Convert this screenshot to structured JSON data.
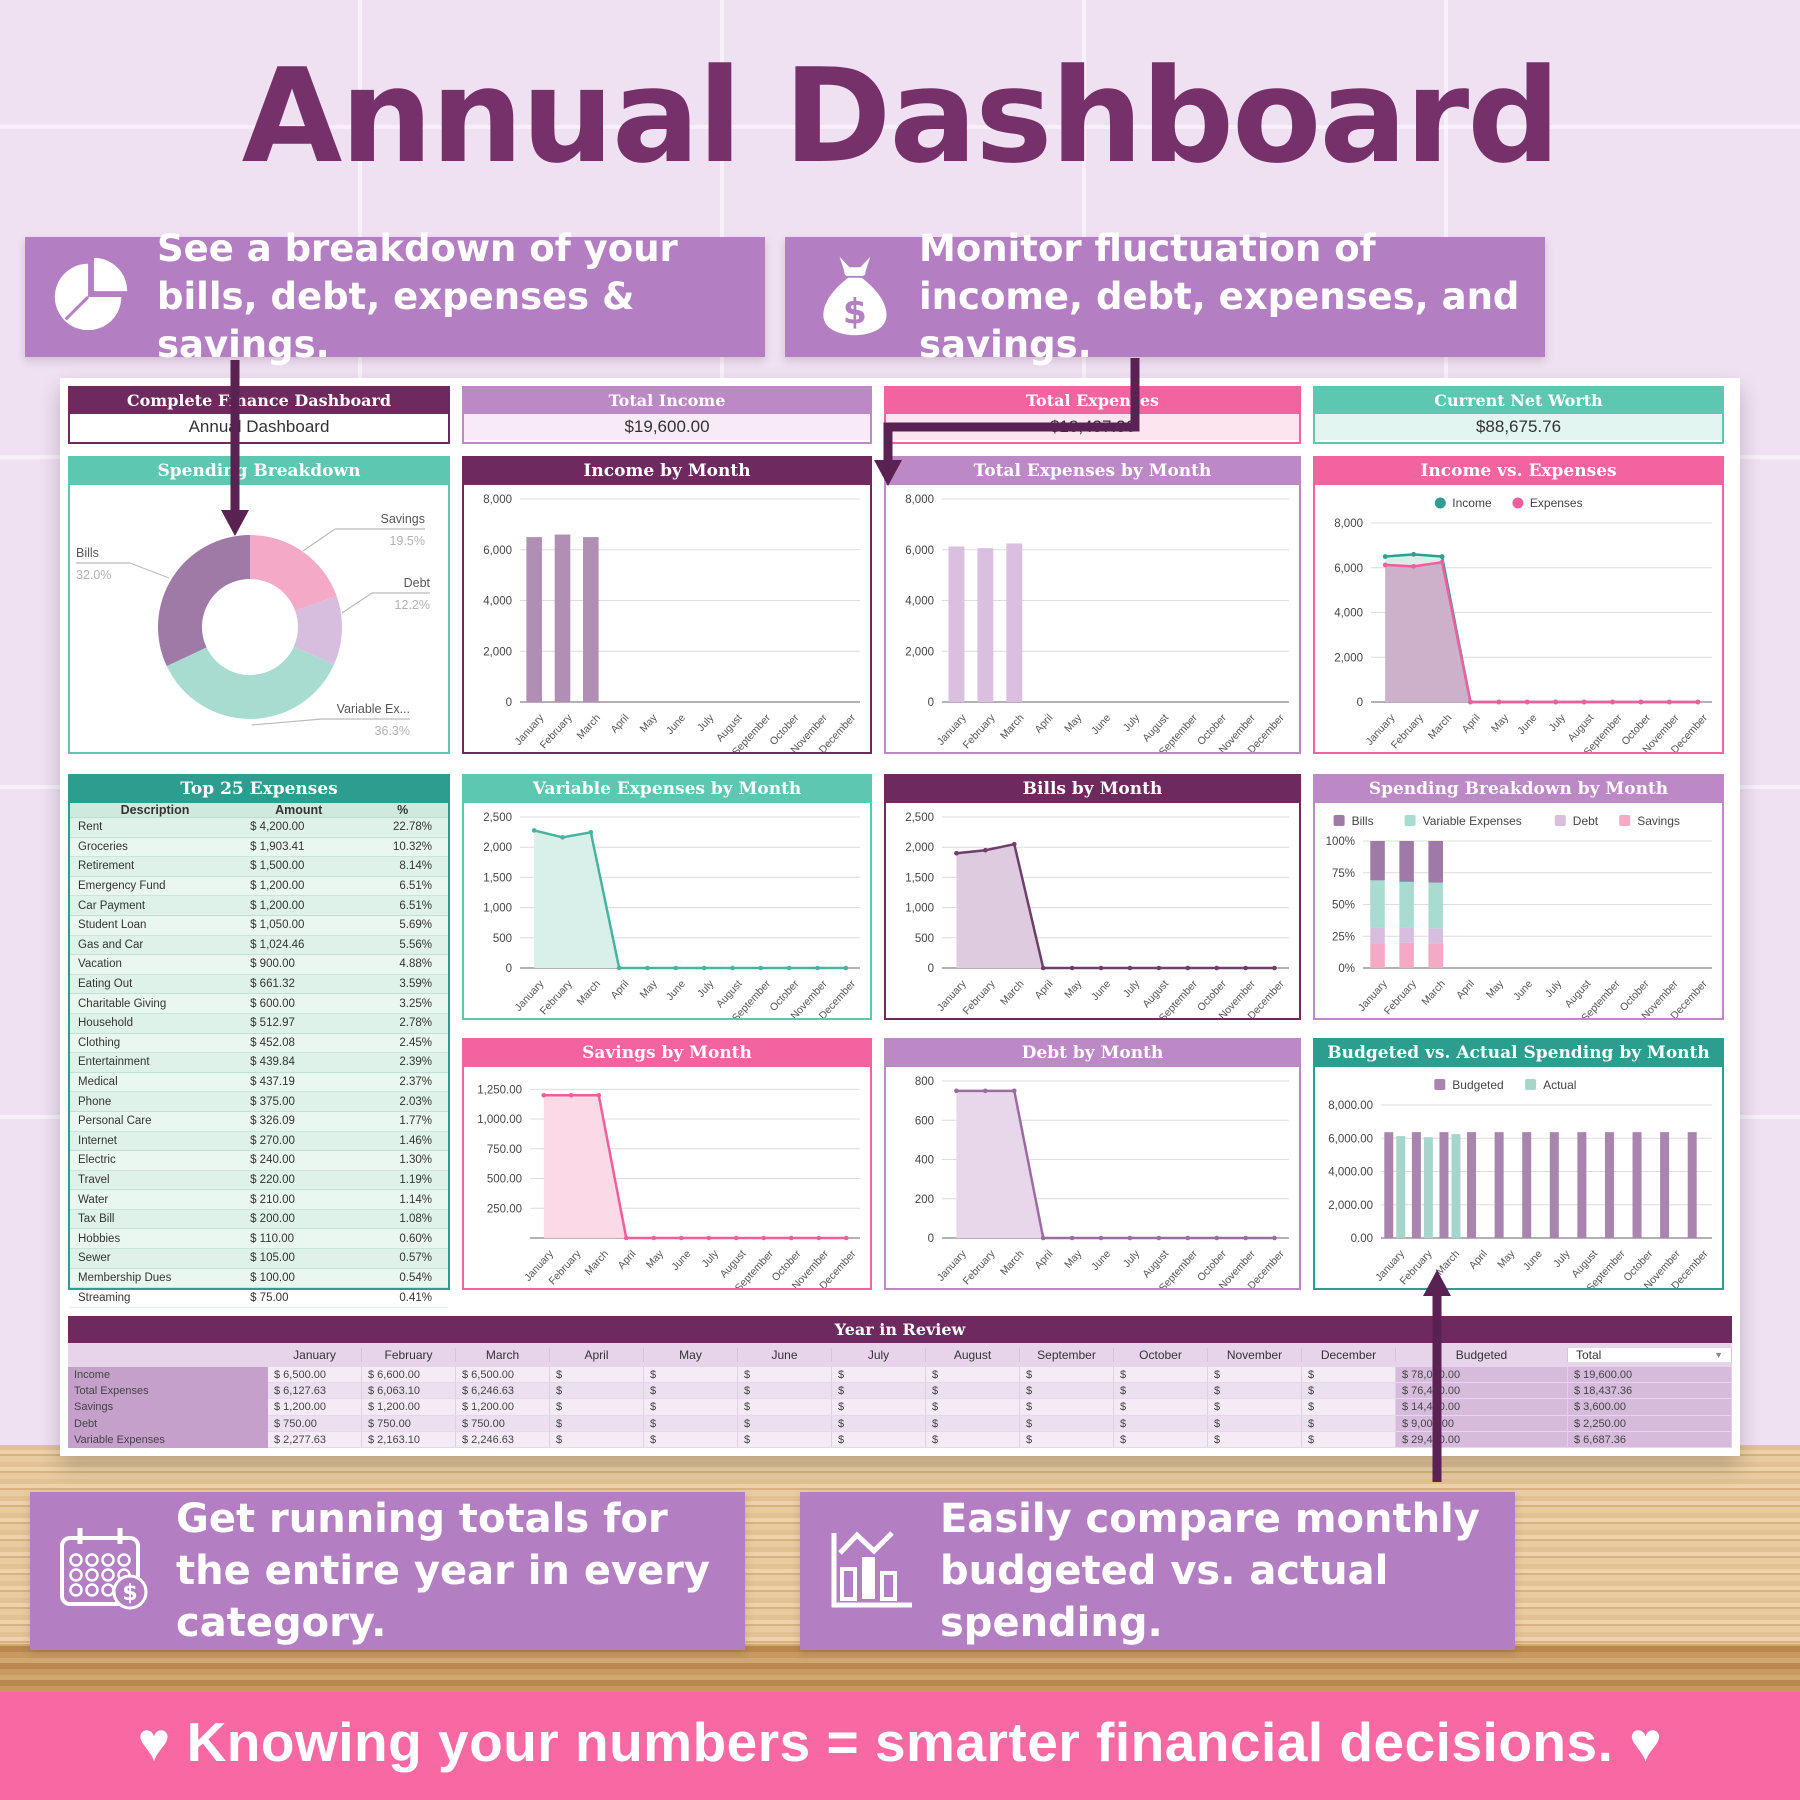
{
  "page": {
    "title": "Annual Dashboard",
    "banner": "♥ Knowing your numbers = smarter financial decisions. ♥"
  },
  "callouts": {
    "top_left": {
      "icon": "pie-chart-icon",
      "text": "See a breakdown of your bills, debt, expenses & savings."
    },
    "top_right": {
      "icon": "money-bag-icon",
      "text": "Monitor fluctuation of income, debt, expenses, and savings."
    },
    "bottom_left": {
      "icon": "calendar-money-icon",
      "text": "Get running totals for the entire year in every category."
    },
    "bottom_right": {
      "icon": "bar-chart-icon",
      "text": "Easily compare monthly budgeted vs. actual spending."
    }
  },
  "cards": [
    {
      "title": "Complete Finance Dashboard",
      "value": "Annual Dashboard",
      "header_color": "#6e2a5e",
      "body_color": "#ffffff"
    },
    {
      "title": "Total Income",
      "value": "$19,600.00",
      "header_color": "#bd88c6",
      "body_color": "#f8eaf7"
    },
    {
      "title": "Total Expenses",
      "value": "$18,437.36",
      "header_color": "#f2639f",
      "body_color": "#fde5ef"
    },
    {
      "title": "Current Net Worth",
      "value": "$88,675.76",
      "header_color": "#5ec7b1",
      "body_color": "#e3f5f0"
    }
  ],
  "months": [
    "January",
    "February",
    "March",
    "April",
    "May",
    "June",
    "July",
    "August",
    "September",
    "October",
    "November",
    "December"
  ],
  "chart_data": [
    {
      "type": "pie",
      "variant": "donut",
      "title": "Spending Breakdown",
      "header_color": "#5ec7b1",
      "slices": [
        {
          "label": "Savings",
          "pct": 19.5,
          "color": "#f4a9c6"
        },
        {
          "label": "Debt",
          "pct": 12.2,
          "color": "#d8bede"
        },
        {
          "label": "Variable Ex...",
          "pct": 36.3,
          "color": "#a9dcd0"
        },
        {
          "label": "Bills",
          "pct": 32.0,
          "color": "#a07aa6"
        }
      ]
    },
    {
      "type": "bar",
      "title": "Income by Month",
      "header_color": "#6e2a5e",
      "bar_color": "#b18fb5",
      "ymax": 8000,
      "yticks": [
        0,
        2000,
        4000,
        6000,
        8000
      ],
      "yfmt": "int",
      "values": [
        6500,
        6600,
        6500,
        0,
        0,
        0,
        0,
        0,
        0,
        0,
        0,
        0
      ]
    },
    {
      "type": "bar",
      "title": "Total Expenses by Month",
      "header_color": "#bd88c6",
      "bar_color": "#dbbfe1",
      "ymax": 8000,
      "yticks": [
        0,
        2000,
        4000,
        6000,
        8000
      ],
      "yfmt": "int",
      "values": [
        6127.63,
        6063.1,
        6246.63,
        0,
        0,
        0,
        0,
        0,
        0,
        0,
        0,
        0
      ]
    },
    {
      "type": "line",
      "variant": "area2",
      "title": "Income vs. Expenses",
      "header_color": "#f2639f",
      "ymax": 8000,
      "yticks": [
        0,
        2000,
        4000,
        6000,
        8000
      ],
      "yfmt": "int",
      "legend": true,
      "legend_marker": "circle",
      "series": [
        {
          "name": "Income",
          "color": "#2f9e8f",
          "fill": "#d8eee8",
          "values": [
            6500,
            6600,
            6500,
            0,
            0,
            0,
            0,
            0,
            0,
            0,
            0,
            0
          ]
        },
        {
          "name": "Expenses",
          "color": "#ef5f9c",
          "fill": "#cdb1cb",
          "values": [
            6127.63,
            6063.1,
            6246.63,
            0,
            0,
            0,
            0,
            0,
            0,
            0,
            0,
            0
          ]
        }
      ]
    },
    {
      "type": "area",
      "title": "Variable Expenses by Month",
      "header_color": "#5ec7b1",
      "line_color": "#48b3a0",
      "fill_color": "#d8f0e9",
      "ymax": 2500,
      "yticks": [
        0,
        500,
        1000,
        1500,
        2000,
        2500
      ],
      "yfmt": "int",
      "values": [
        2277.63,
        2163.1,
        2246.63,
        0,
        0,
        0,
        0,
        0,
        0,
        0,
        0,
        0
      ]
    },
    {
      "type": "area",
      "title": "Bills by Month",
      "header_color": "#6e2a5e",
      "line_color": "#6f3f6b",
      "fill_color": "#decbdf",
      "ymax": 2500,
      "yticks": [
        0,
        500,
        1000,
        1500,
        2000,
        2500
      ],
      "yfmt": "int",
      "values": [
        1900,
        1950,
        2050,
        0,
        0,
        0,
        0,
        0,
        0,
        0,
        0,
        0
      ]
    },
    {
      "type": "bar",
      "variant": "stacked100",
      "title": "Spending Breakdown by Month",
      "header_color": "#bd88c6",
      "legend": true,
      "ymax": 100,
      "yticks": [
        0,
        25,
        50,
        75,
        100
      ],
      "yfmt": "pct",
      "series": [
        {
          "name": "Bills",
          "color": "#a07aa6",
          "values": [
            1900,
            1950,
            2050,
            0,
            0,
            0,
            0,
            0,
            0,
            0,
            0,
            0
          ]
        },
        {
          "name": "Variable Expenses",
          "color": "#a9dcd0",
          "values": [
            2277.63,
            2163.1,
            2246.63,
            0,
            0,
            0,
            0,
            0,
            0,
            0,
            0,
            0
          ]
        },
        {
          "name": "Debt",
          "color": "#d8bede",
          "values": [
            750,
            750,
            750,
            0,
            0,
            0,
            0,
            0,
            0,
            0,
            0,
            0
          ]
        },
        {
          "name": "Savings",
          "color": "#f4a9c6",
          "values": [
            1200,
            1200,
            1200,
            0,
            0,
            0,
            0,
            0,
            0,
            0,
            0,
            0
          ]
        }
      ]
    },
    {
      "type": "area",
      "title": "Savings by Month",
      "header_color": "#f2639f",
      "line_color": "#ef5f9c",
      "fill_color": "#fbd9e7",
      "ymax": 1320,
      "yticks": [
        250,
        500,
        750,
        1000,
        1250
      ],
      "yfmt": "dec",
      "values": [
        1200,
        1200,
        1200,
        0,
        0,
        0,
        0,
        0,
        0,
        0,
        0,
        0
      ]
    },
    {
      "type": "area",
      "title": "Debt by Month",
      "header_color": "#bd88c6",
      "line_color": "#9d6ba4",
      "fill_color": "#e8d6eb",
      "ymax": 800,
      "yticks": [
        0,
        200,
        400,
        600,
        800
      ],
      "yfmt": "int",
      "values": [
        750,
        750,
        750,
        0,
        0,
        0,
        0,
        0,
        0,
        0,
        0,
        0
      ]
    },
    {
      "type": "bar",
      "variant": "grouped",
      "title": "Budgeted vs. Actual Spending by Month",
      "header_color": "#2d9d8f",
      "legend": true,
      "ymax": 8000,
      "yticks": [
        0,
        2000,
        4000,
        6000,
        8000
      ],
      "yfmt": "dec",
      "series": [
        {
          "name": "Budgeted",
          "color": "#a884ae",
          "values": [
            6366.67,
            6366.67,
            6366.67,
            6366.67,
            6366.67,
            6366.67,
            6366.67,
            6366.67,
            6366.67,
            6366.67,
            6366.67,
            6366.67
          ]
        },
        {
          "name": "Actual",
          "color": "#a7d5cb",
          "values": [
            6127.63,
            6063.1,
            6246.63,
            0,
            0,
            0,
            0,
            0,
            0,
            0,
            0,
            0
          ]
        }
      ]
    }
  ],
  "top25": {
    "title": "Top 25 Expenses",
    "columns": [
      "Description",
      "Amount",
      "%"
    ],
    "rows": [
      [
        "Rent",
        "$ 4,200.00",
        "22.78%"
      ],
      [
        "Groceries",
        "$ 1,903.41",
        "10.32%"
      ],
      [
        "Retirement",
        "$ 1,500.00",
        "8.14%"
      ],
      [
        "Emergency Fund",
        "$ 1,200.00",
        "6.51%"
      ],
      [
        "Car Payment",
        "$ 1,200.00",
        "6.51%"
      ],
      [
        "Student Loan",
        "$ 1,050.00",
        "5.69%"
      ],
      [
        "Gas and Car",
        "$ 1,024.46",
        "5.56%"
      ],
      [
        "Vacation",
        "$ 900.00",
        "4.88%"
      ],
      [
        "Eating Out",
        "$ 661.32",
        "3.59%"
      ],
      [
        "Charitable Giving",
        "$ 600.00",
        "3.25%"
      ],
      [
        "Household",
        "$ 512.97",
        "2.78%"
      ],
      [
        "Clothing",
        "$ 452.08",
        "2.45%"
      ],
      [
        "Entertainment",
        "$ 439.84",
        "2.39%"
      ],
      [
        "Medical",
        "$ 437.19",
        "2.37%"
      ],
      [
        "Phone",
        "$ 375.00",
        "2.03%"
      ],
      [
        "Personal Care",
        "$ 326.09",
        "1.77%"
      ],
      [
        "Internet",
        "$ 270.00",
        "1.46%"
      ],
      [
        "Electric",
        "$ 240.00",
        "1.30%"
      ],
      [
        "Travel",
        "$ 220.00",
        "1.19%"
      ],
      [
        "Water",
        "$ 210.00",
        "1.14%"
      ],
      [
        "Tax Bill",
        "$ 200.00",
        "1.08%"
      ],
      [
        "Hobbies",
        "$ 110.00",
        "0.60%"
      ],
      [
        "Sewer",
        "$ 105.00",
        "0.57%"
      ],
      [
        "Membership Dues",
        "$ 100.00",
        "0.54%"
      ],
      [
        "Streaming",
        "$ 75.00",
        "0.41%"
      ]
    ]
  },
  "year_in_review": {
    "title": "Year in Review",
    "columns": [
      "",
      "January",
      "February",
      "March",
      "April",
      "May",
      "June",
      "July",
      "August",
      "September",
      "October",
      "November",
      "December",
      "Budgeted",
      "Total"
    ],
    "rows": [
      {
        "label": "Income",
        "values": [
          "$ 6,500.00",
          "$ 6,600.00",
          "$ 6,500.00",
          "$",
          "$",
          "$",
          "$",
          "$",
          "$",
          "$",
          "$",
          "$",
          "$ 78,000.00",
          "$ 19,600.00"
        ]
      },
      {
        "label": "Total Expenses",
        "values": [
          "$ 6,127.63",
          "$ 6,063.10",
          "$ 6,246.63",
          "$",
          "$",
          "$",
          "$",
          "$",
          "$",
          "$",
          "$",
          "$",
          "$ 76,400.00",
          "$ 18,437.36"
        ]
      },
      {
        "label": "Savings",
        "values": [
          "$ 1,200.00",
          "$ 1,200.00",
          "$ 1,200.00",
          "$",
          "$",
          "$",
          "$",
          "$",
          "$",
          "$",
          "$",
          "$",
          "$ 14,400.00",
          "$ 3,600.00"
        ]
      },
      {
        "label": "Debt",
        "values": [
          "$ 750.00",
          "$ 750.00",
          "$ 750.00",
          "$",
          "$",
          "$",
          "$",
          "$",
          "$",
          "$",
          "$",
          "$",
          "$ 9,000.00",
          "$ 2,250.00"
        ]
      },
      {
        "label": "Variable Expenses",
        "values": [
          "$ 2,277.63",
          "$ 2,163.10",
          "$ 2,246.63",
          "$",
          "$",
          "$",
          "$",
          "$",
          "$",
          "$",
          "$",
          "$",
          "$ 29,400.00",
          "$ 6,687.36"
        ]
      }
    ]
  }
}
